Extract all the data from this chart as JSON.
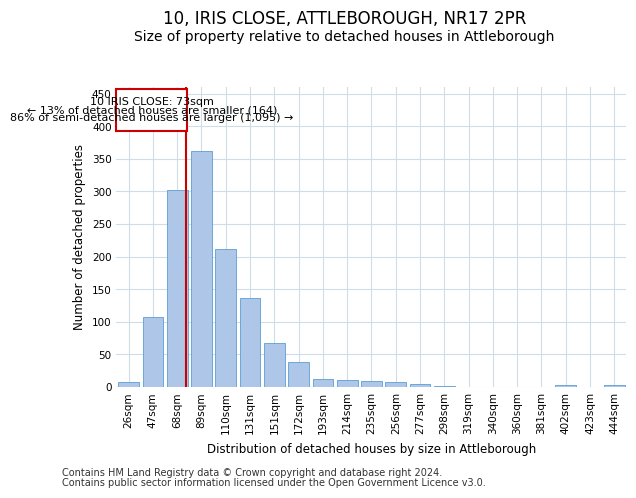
{
  "title": "10, IRIS CLOSE, ATTLEBOROUGH, NR17 2PR",
  "subtitle": "Size of property relative to detached houses in Attleborough",
  "xlabel": "Distribution of detached houses by size in Attleborough",
  "ylabel": "Number of detached properties",
  "footnote1": "Contains HM Land Registry data © Crown copyright and database right 2024.",
  "footnote2": "Contains public sector information licensed under the Open Government Licence v3.0.",
  "categories": [
    "26sqm",
    "47sqm",
    "68sqm",
    "89sqm",
    "110sqm",
    "131sqm",
    "151sqm",
    "172sqm",
    "193sqm",
    "214sqm",
    "235sqm",
    "256sqm",
    "277sqm",
    "298sqm",
    "319sqm",
    "340sqm",
    "360sqm",
    "381sqm",
    "402sqm",
    "423sqm",
    "444sqm"
  ],
  "values": [
    8,
    108,
    302,
    362,
    212,
    136,
    68,
    38,
    13,
    10,
    9,
    7,
    5,
    2,
    0,
    0,
    0,
    0,
    3,
    0,
    3
  ],
  "bar_color": "#aec6e8",
  "bar_edge_color": "#5a9fd4",
  "annotation_box_color": "#cc0000",
  "vline_color": "#cc0000",
  "annotation_line1": "10 IRIS CLOSE: 73sqm",
  "annotation_line2": "← 13% of detached houses are smaller (164)",
  "annotation_line3": "86% of semi-detached houses are larger (1,095) →",
  "ylim": [
    0,
    460
  ],
  "yticks": [
    0,
    50,
    100,
    150,
    200,
    250,
    300,
    350,
    400,
    450
  ],
  "title_fontsize": 12,
  "subtitle_fontsize": 10,
  "axis_label_fontsize": 8.5,
  "tick_fontsize": 7.5,
  "annotation_fontsize": 8,
  "footnote_fontsize": 7,
  "background_color": "#ffffff",
  "grid_color": "#d0dde8"
}
